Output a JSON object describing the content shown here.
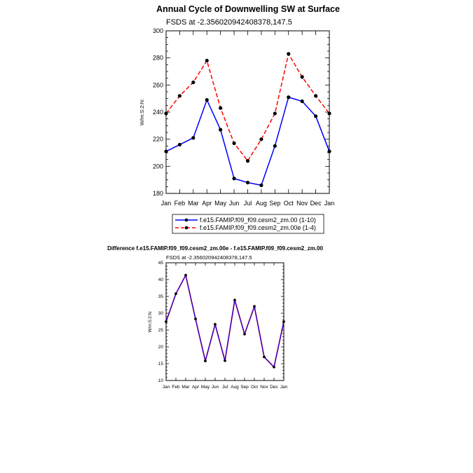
{
  "chart_data": [
    {
      "type": "line",
      "title": "Annual Cycle of Downwelling SW at Surface",
      "subtitle": "FSDS at -2.356020942408378,147.5",
      "ylabel": "W/m:S:2:N:",
      "xlabel": "",
      "categories": [
        "Jan",
        "Feb",
        "Mar",
        "Apr",
        "May",
        "Jun",
        "Jul",
        "Aug",
        "Sep",
        "Oct",
        "Nov",
        "Dec",
        "Jan"
      ],
      "ylim": [
        180,
        300
      ],
      "yticks": [
        180,
        200,
        220,
        240,
        260,
        280,
        300
      ],
      "grid": false,
      "legend_position": "bottom",
      "series": [
        {
          "name": "f.e15.FAMIP.f09_f09.cesm2_zm.00 (1-10)",
          "color": "#0000ff",
          "dash": "solid",
          "values": [
            211,
            216,
            221,
            249,
            227,
            191,
            188,
            186,
            215,
            251,
            248,
            237,
            211
          ]
        },
        {
          "name": "f.e15.FAMIP.f09_f09.cesm2_zm.00e (1-4)",
          "color": "#ff0000",
          "dash": "dashed",
          "values": [
            239,
            252,
            262,
            278,
            243,
            217,
            204,
            220,
            239,
            283,
            266,
            252,
            239
          ]
        }
      ]
    },
    {
      "type": "line",
      "title": "Difference f.e15.FAMIP.f09_f09.cesm2_zm.00e - f.e15.FAMIP.f09_f09.cesm2_zm.00",
      "subtitle": "FSDS at -2.356020942408378,147.5",
      "ylabel": "W/m:S:2:N:",
      "xlabel": "",
      "categories": [
        "Jan",
        "Feb",
        "Mar",
        "Apr",
        "May",
        "Jun",
        "Jul",
        "Aug",
        "Sep",
        "Oct",
        "Nov",
        "Dec",
        "Jan"
      ],
      "ylim": [
        10,
        45
      ],
      "yticks": [
        10,
        15,
        20,
        25,
        30,
        35,
        40,
        45
      ],
      "grid": false,
      "series": [
        {
          "color": "#0000ff",
          "overlay_color": "#ff0000",
          "values": [
            27.5,
            35.8,
            41.3,
            28.3,
            15.8,
            26.7,
            15.9,
            33.9,
            23.8,
            32.0,
            17.0,
            14.0,
            27.5
          ]
        }
      ]
    }
  ]
}
